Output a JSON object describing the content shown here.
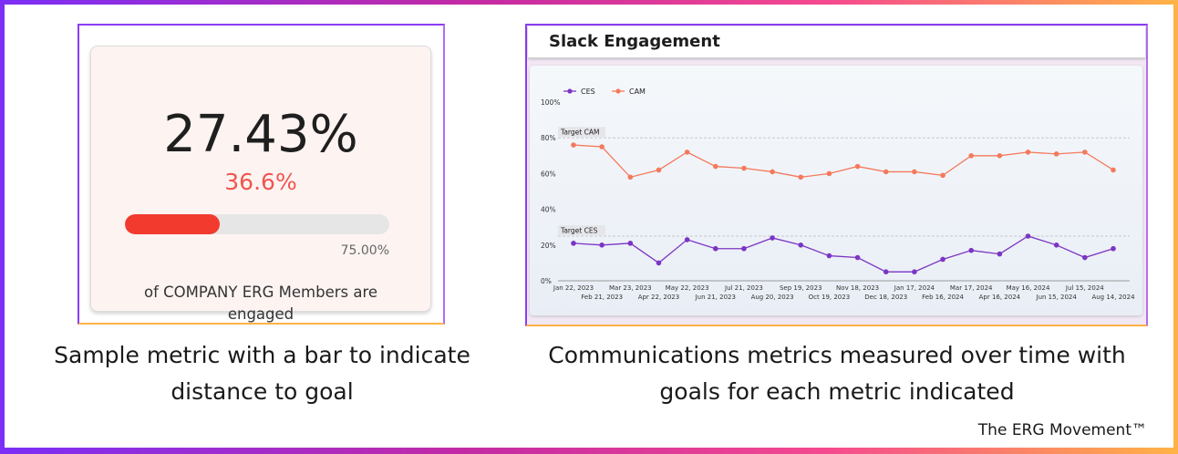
{
  "metric": {
    "value": "27.43%",
    "secondary_value": "36.6%",
    "progress_fraction": 0.36,
    "goal_label": "75.00%",
    "description_line1": "of COMPANY ERG Members are",
    "description_line2": "engaged"
  },
  "captions": {
    "left_line1": "Sample metric with  a bar to indicate",
    "left_line2": "distance to goal",
    "right_line1": "Communications metrics measured over time with",
    "right_line2": "goals for each metric indicated",
    "brand": "The ERG Movement™"
  },
  "colors": {
    "ces": "#7b35c4",
    "cam": "#f47a5c",
    "bar_fill": "#f23a2f",
    "accent_secondary": "#f0554d"
  },
  "chart_data": {
    "type": "line",
    "title": "Slack Engagement",
    "categories": [
      "Jan 22, 2023",
      "Feb 21, 2023",
      "Mar 23, 2023",
      "Apr 22, 2023",
      "May 22, 2023",
      "Jun 21, 2023",
      "Jul 21, 2023",
      "Aug 20, 2023",
      "Sep 19, 2023",
      "Oct 19, 2023",
      "Nov 18, 2023",
      "Dec 18, 2023",
      "Jan 17, 2024",
      "Feb 16, 2024",
      "Mar 17, 2024",
      "Apr 16, 2024",
      "May 16, 2024",
      "Jun 15, 2024",
      "Jul 15, 2024",
      "Aug 14, 2024"
    ],
    "series": [
      {
        "name": "CES",
        "values": [
          21,
          20,
          21,
          10,
          23,
          18,
          18,
          24,
          20,
          14,
          13,
          5,
          5,
          12,
          17,
          15,
          25,
          20,
          13,
          18
        ]
      },
      {
        "name": "CAM",
        "values": [
          76,
          75,
          58,
          62,
          72,
          64,
          63,
          61,
          58,
          60,
          64,
          61,
          61,
          59,
          70,
          70,
          72,
          71,
          72,
          62
        ]
      }
    ],
    "ylim": [
      0,
      100
    ],
    "yticks": [
      "0%",
      "20%",
      "40%",
      "60%",
      "80%",
      "100%"
    ],
    "ytick_values": [
      0,
      20,
      40,
      60,
      80,
      100
    ],
    "targets": [
      {
        "label": "Target CAM",
        "value": 80
      },
      {
        "label": "Target CES",
        "value": 25
      }
    ],
    "legend_position": "top-left",
    "xlabel": "",
    "ylabel": ""
  }
}
